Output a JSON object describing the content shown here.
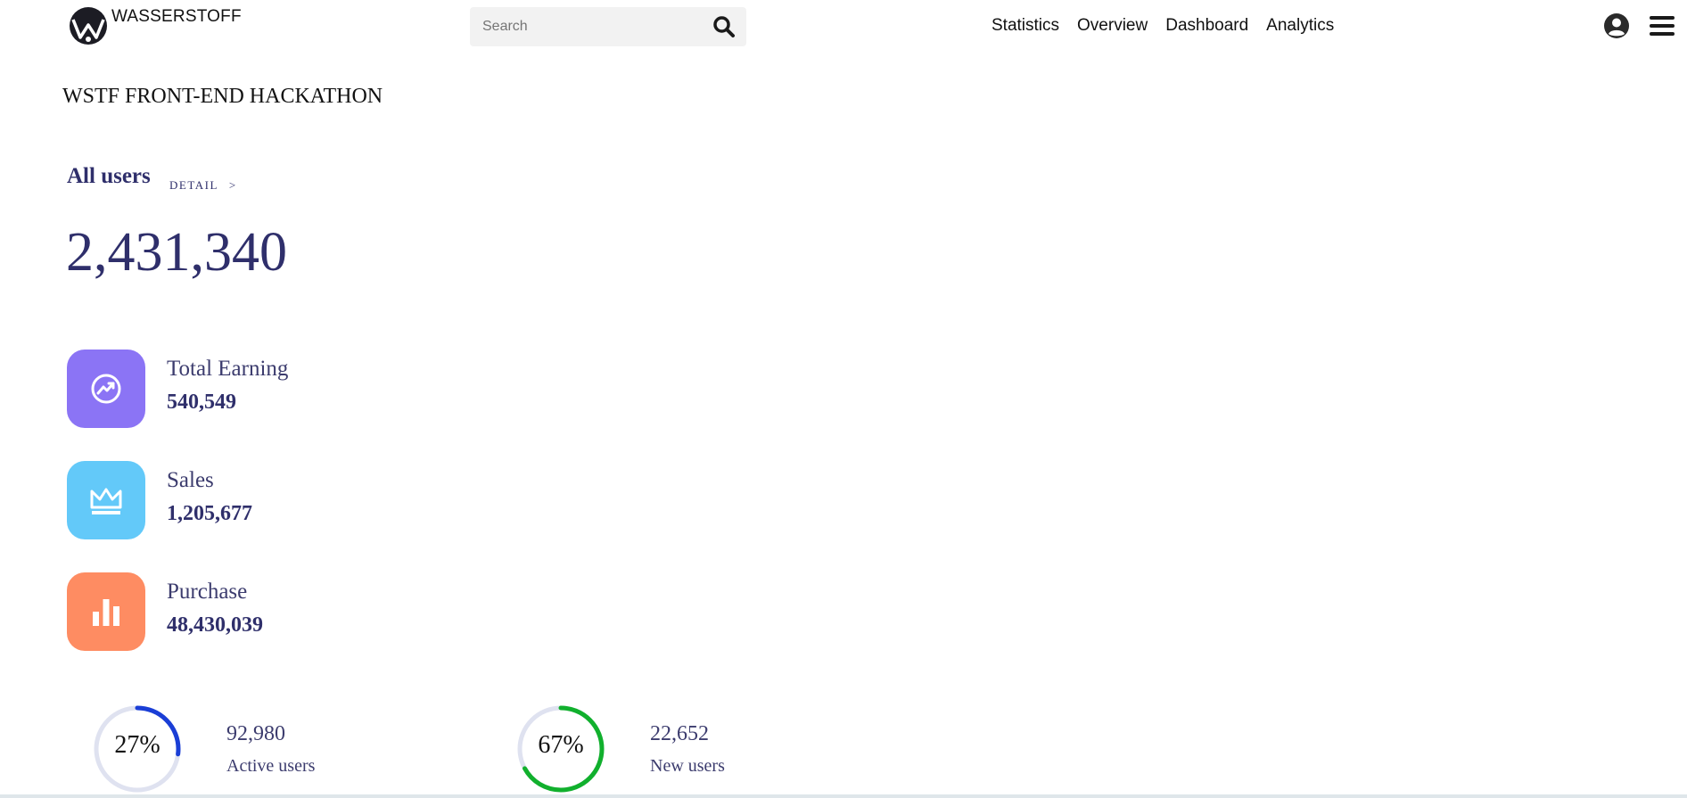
{
  "header": {
    "brand": "WASSERSTOFF",
    "search_placeholder": "Search",
    "nav_links": [
      "Statistics",
      "Overview",
      "Dashboard",
      "Analytics"
    ],
    "icons": {
      "logo": "wasserstoff-logo",
      "search": "search-icon",
      "user": "user-circle-icon",
      "menu": "hamburger-menu-icon"
    }
  },
  "page": {
    "title": "WSTF FRONT-END HACKATHON"
  },
  "summary": {
    "label": "All users",
    "detail_label": "DETAIL",
    "detail_chevron": ">",
    "total": "2,431,340"
  },
  "stats": [
    {
      "label": "Total Earning",
      "value": "540,549",
      "icon": "trending-up-icon",
      "color": "#8b74f5"
    },
    {
      "label": "Sales",
      "value": "1,205,677",
      "icon": "crown-icon",
      "color": "#63c9f9"
    },
    {
      "label": "Purchase",
      "value": "48,430,039",
      "icon": "bar-chart-icon",
      "color": "#fe8c62"
    }
  ],
  "rings": [
    {
      "percent_label": "27%",
      "percent": 27,
      "value": "92,980",
      "label": "Active users",
      "color": "#1a3ed6"
    },
    {
      "percent_label": "67%",
      "percent": 67,
      "value": "22,652",
      "label": "New users",
      "color": "#11b02d"
    }
  ],
  "colors": {
    "primary_text": "#2f2f6b",
    "ring_track": "#dfe2f0"
  }
}
